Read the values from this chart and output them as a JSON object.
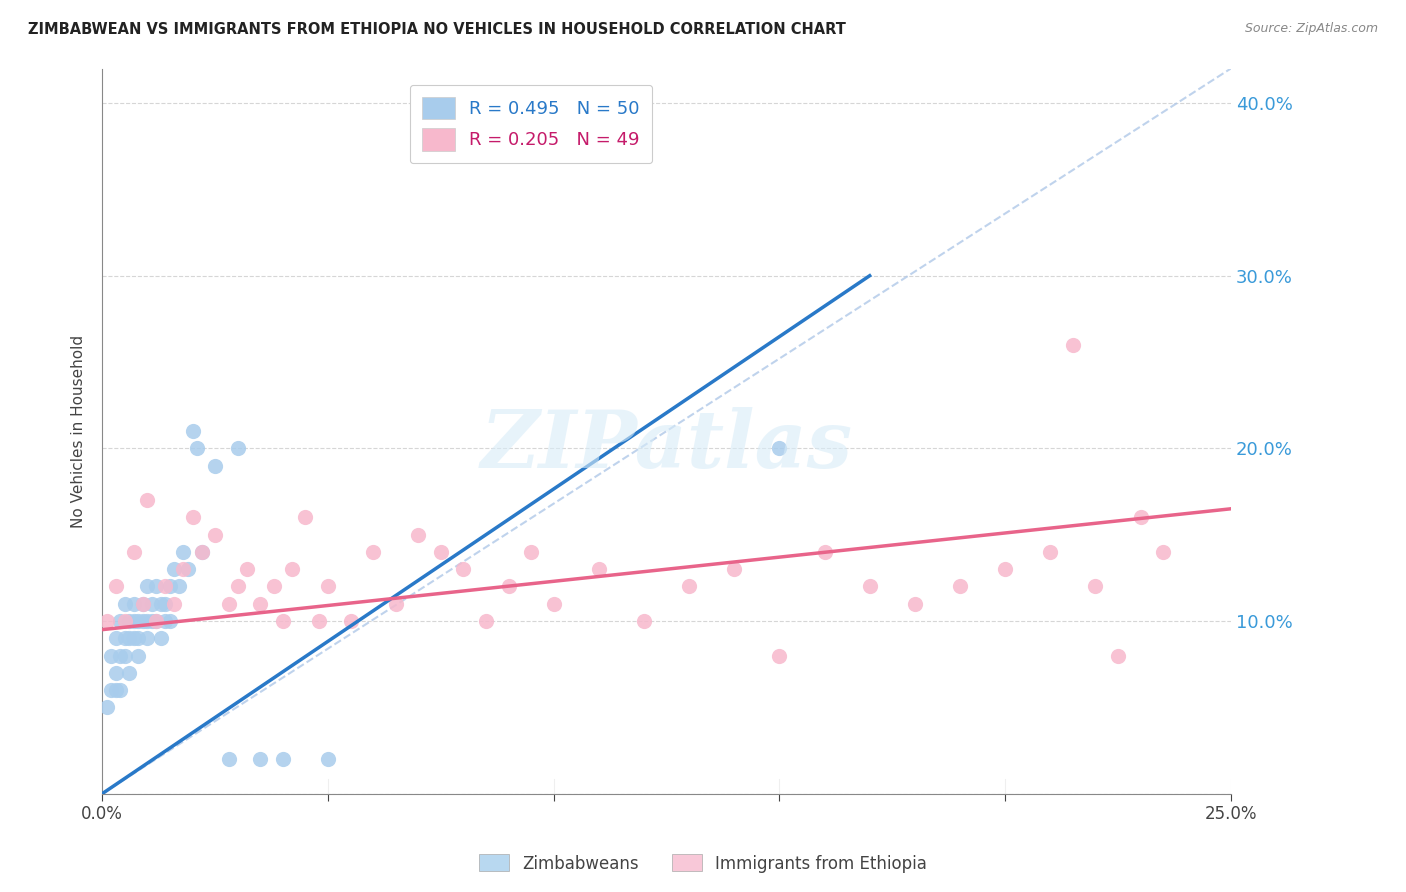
{
  "title": "ZIMBABWEAN VS IMMIGRANTS FROM ETHIOPIA NO VEHICLES IN HOUSEHOLD CORRELATION CHART",
  "source": "Source: ZipAtlas.com",
  "ylabel": "No Vehicles in Household",
  "legend_label1": "Zimbabweans",
  "legend_label2": "Immigrants from Ethiopia",
  "r1": 0.495,
  "n1": 50,
  "r2": 0.205,
  "n2": 49,
  "xlim": [
    0.0,
    0.25
  ],
  "ylim": [
    0.0,
    0.42
  ],
  "xticks": [
    0.0,
    0.05,
    0.1,
    0.15,
    0.2,
    0.25
  ],
  "yticks": [
    0.0,
    0.1,
    0.2,
    0.3,
    0.4
  ],
  "xticklabels_visible": [
    "0.0%",
    "",
    "",
    "",
    "",
    "25.0%"
  ],
  "yticklabels": [
    "",
    "10.0%",
    "20.0%",
    "30.0%",
    "40.0%"
  ],
  "blue_scatter_color": "#a8ccec",
  "pink_scatter_color": "#f7b8cc",
  "blue_line_color": "#2979c8",
  "pink_line_color": "#e8648a",
  "diag_line_color": "#b0c8e8",
  "background_color": "#ffffff",
  "grid_color": "#cccccc",
  "watermark_text": "ZIPatlas",
  "zimbabwe_x": [
    0.001,
    0.002,
    0.002,
    0.003,
    0.003,
    0.003,
    0.004,
    0.004,
    0.004,
    0.005,
    0.005,
    0.005,
    0.006,
    0.006,
    0.006,
    0.007,
    0.007,
    0.007,
    0.008,
    0.008,
    0.008,
    0.009,
    0.009,
    0.01,
    0.01,
    0.01,
    0.011,
    0.011,
    0.012,
    0.012,
    0.013,
    0.013,
    0.014,
    0.014,
    0.015,
    0.015,
    0.016,
    0.017,
    0.018,
    0.019,
    0.02,
    0.021,
    0.022,
    0.025,
    0.028,
    0.03,
    0.035,
    0.04,
    0.05,
    0.15
  ],
  "zimbabwe_y": [
    0.05,
    0.08,
    0.06,
    0.09,
    0.07,
    0.06,
    0.1,
    0.08,
    0.06,
    0.11,
    0.09,
    0.08,
    0.1,
    0.09,
    0.07,
    0.11,
    0.1,
    0.09,
    0.1,
    0.09,
    0.08,
    0.11,
    0.1,
    0.12,
    0.1,
    0.09,
    0.11,
    0.1,
    0.12,
    0.1,
    0.11,
    0.09,
    0.11,
    0.1,
    0.12,
    0.1,
    0.13,
    0.12,
    0.14,
    0.13,
    0.21,
    0.2,
    0.14,
    0.19,
    0.02,
    0.2,
    0.02,
    0.02,
    0.02,
    0.2
  ],
  "ethiopia_x": [
    0.001,
    0.003,
    0.005,
    0.007,
    0.009,
    0.01,
    0.012,
    0.014,
    0.016,
    0.018,
    0.02,
    0.022,
    0.025,
    0.028,
    0.03,
    0.032,
    0.035,
    0.038,
    0.04,
    0.042,
    0.045,
    0.048,
    0.05,
    0.055,
    0.06,
    0.065,
    0.07,
    0.075,
    0.08,
    0.085,
    0.09,
    0.095,
    0.1,
    0.11,
    0.12,
    0.13,
    0.14,
    0.15,
    0.16,
    0.17,
    0.18,
    0.19,
    0.2,
    0.21,
    0.215,
    0.22,
    0.225,
    0.23,
    0.235
  ],
  "ethiopia_y": [
    0.1,
    0.12,
    0.1,
    0.14,
    0.11,
    0.17,
    0.1,
    0.12,
    0.11,
    0.13,
    0.16,
    0.14,
    0.15,
    0.11,
    0.12,
    0.13,
    0.11,
    0.12,
    0.1,
    0.13,
    0.16,
    0.1,
    0.12,
    0.1,
    0.14,
    0.11,
    0.15,
    0.14,
    0.13,
    0.1,
    0.12,
    0.14,
    0.11,
    0.13,
    0.1,
    0.12,
    0.13,
    0.08,
    0.14,
    0.12,
    0.11,
    0.12,
    0.13,
    0.14,
    0.26,
    0.12,
    0.08,
    0.16,
    0.14
  ],
  "blue_line_x": [
    0.0,
    0.17
  ],
  "blue_line_y": [
    0.0,
    0.3
  ],
  "pink_line_x": [
    0.0,
    0.25
  ],
  "pink_line_y": [
    0.095,
    0.165
  ],
  "diag_line_x": [
    0.0,
    0.25
  ],
  "diag_line_y": [
    0.0,
    0.42
  ]
}
